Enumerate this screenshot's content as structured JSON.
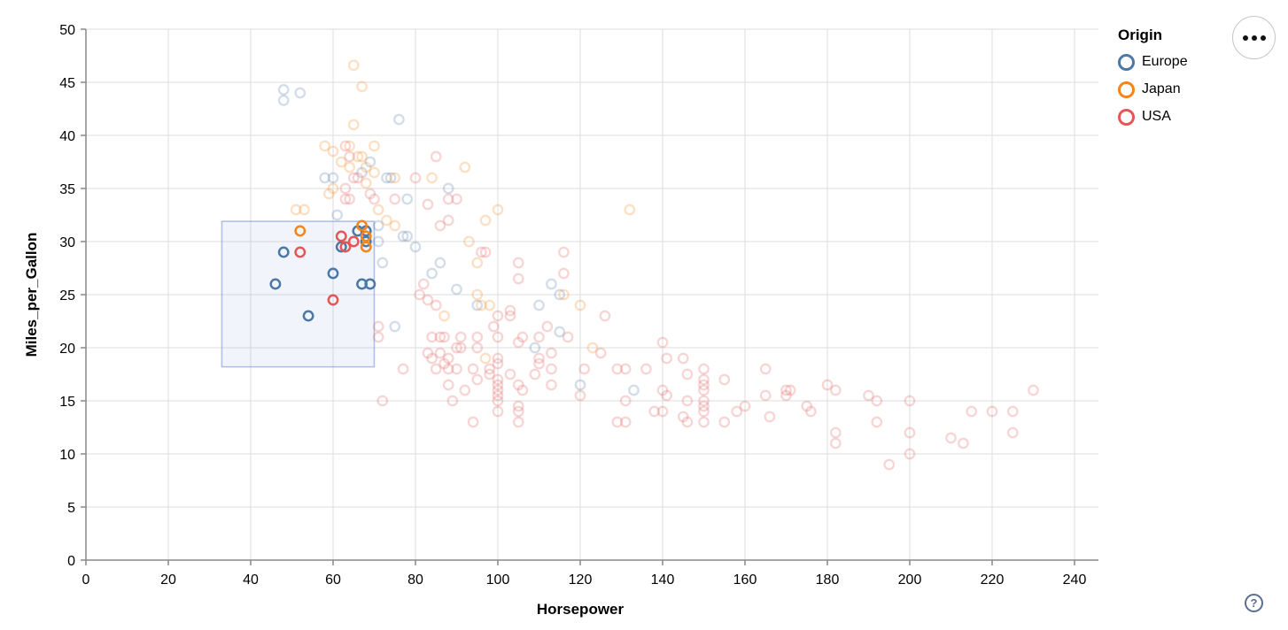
{
  "legend": {
    "title": "Origin",
    "entries": [
      {
        "label": "Europe",
        "color": "#4c78a8"
      },
      {
        "label": "Japan",
        "color": "#f58518"
      },
      {
        "label": "USA",
        "color": "#e45756"
      }
    ]
  },
  "controls": {
    "menu_tooltip": "options",
    "help_label": "?"
  },
  "style": {
    "background": "#ffffff",
    "grid_color": "#dddddd",
    "axis_domain_color": "#888888",
    "tick_color": "#888888",
    "label_color": "#000000",
    "unselected_opacity": 0.25,
    "brush_fill": "rgba(140, 170, 220, 0.12)",
    "brush_stroke": "rgba(130, 160, 215, 0.65)"
  },
  "chart_data": {
    "type": "scatter",
    "title": "",
    "xlabel": "Horsepower",
    "ylabel": "Miles_per_Gallon",
    "xlim": [
      0,
      240
    ],
    "ylim": [
      0,
      50
    ],
    "xticks": [
      0,
      20,
      40,
      60,
      80,
      100,
      120,
      140,
      160,
      180,
      200,
      220,
      240
    ],
    "yticks": [
      0,
      5,
      10,
      15,
      20,
      25,
      30,
      35,
      40,
      45,
      50
    ],
    "grid": true,
    "legend_position": "top-right",
    "brush": {
      "x": [
        33,
        70
      ],
      "y": [
        18.2,
        31.9
      ]
    },
    "series": [
      {
        "name": "Europe",
        "color": "#4c78a8",
        "selected_points": [
          [
            46,
            26
          ],
          [
            48,
            29
          ],
          [
            54,
            23
          ],
          [
            60,
            27
          ],
          [
            62,
            29.5
          ],
          [
            66,
            31
          ],
          [
            68,
            31
          ],
          [
            68,
            30
          ],
          [
            67,
            26
          ],
          [
            69,
            26
          ]
        ],
        "points": [
          [
            48,
            44.3
          ],
          [
            52,
            44
          ],
          [
            48,
            43.3
          ],
          [
            76,
            41.5
          ],
          [
            69,
            37.5
          ],
          [
            67,
            36.5
          ],
          [
            73,
            36
          ],
          [
            74,
            36
          ],
          [
            58,
            36
          ],
          [
            60,
            36
          ],
          [
            88,
            35
          ],
          [
            78,
            34
          ],
          [
            71,
            31.5
          ],
          [
            61,
            32.5
          ],
          [
            77,
            30.5
          ],
          [
            78,
            30.5
          ],
          [
            71,
            30
          ],
          [
            72,
            28
          ],
          [
            80,
            29.5
          ],
          [
            86,
            28
          ],
          [
            84,
            27
          ],
          [
            90,
            25.5
          ],
          [
            95,
            24
          ],
          [
            113,
            26
          ],
          [
            115,
            25
          ],
          [
            110,
            24
          ],
          [
            75,
            22
          ],
          [
            115,
            21.5
          ],
          [
            109,
            20
          ],
          [
            120,
            16.5
          ],
          [
            133,
            16
          ]
        ]
      },
      {
        "name": "Japan",
        "color": "#f58518",
        "selected_points": [
          [
            52,
            31
          ],
          [
            67,
            31.5
          ],
          [
            68,
            30.5
          ],
          [
            68,
            29.5
          ]
        ],
        "points": [
          [
            65,
            46.6
          ],
          [
            67,
            44.6
          ],
          [
            65,
            41
          ],
          [
            70,
            39
          ],
          [
            64,
            39
          ],
          [
            58,
            39
          ],
          [
            60,
            38.5
          ],
          [
            62,
            37.5
          ],
          [
            66,
            38
          ],
          [
            64,
            37
          ],
          [
            67,
            38
          ],
          [
            68,
            37
          ],
          [
            68,
            35.5
          ],
          [
            70,
            36.5
          ],
          [
            60,
            35
          ],
          [
            59,
            34.5
          ],
          [
            51,
            33
          ],
          [
            53,
            33
          ],
          [
            75,
            36
          ],
          [
            84,
            36
          ],
          [
            92,
            37
          ],
          [
            71,
            33
          ],
          [
            73,
            32
          ],
          [
            75,
            31.5
          ],
          [
            97,
            32
          ],
          [
            100,
            33
          ],
          [
            132,
            33
          ],
          [
            93,
            30
          ],
          [
            95,
            28
          ],
          [
            95,
            25
          ],
          [
            96,
            24
          ],
          [
            98,
            24
          ],
          [
            116,
            25
          ],
          [
            120,
            24
          ],
          [
            87,
            23
          ],
          [
            97,
            19
          ],
          [
            123,
            20
          ]
        ]
      },
      {
        "name": "USA",
        "color": "#e45756",
        "selected_points": [
          [
            52,
            29
          ],
          [
            60,
            24.5
          ],
          [
            62,
            30.5
          ],
          [
            65,
            30
          ],
          [
            63,
            29.5
          ]
        ],
        "points": [
          [
            63,
            39
          ],
          [
            64,
            38
          ],
          [
            65,
            36
          ],
          [
            66,
            36
          ],
          [
            63,
            35
          ],
          [
            63,
            34
          ],
          [
            64,
            34
          ],
          [
            69,
            34.5
          ],
          [
            70,
            34
          ],
          [
            75,
            34
          ],
          [
            80,
            36
          ],
          [
            85,
            38
          ],
          [
            83,
            33.5
          ],
          [
            88,
            34
          ],
          [
            90,
            34
          ],
          [
            86,
            31.5
          ],
          [
            88,
            32
          ],
          [
            96,
            29
          ],
          [
            97,
            29
          ],
          [
            105,
            28
          ],
          [
            105,
            26.5
          ],
          [
            116,
            29
          ],
          [
            116,
            27
          ],
          [
            112,
            22
          ],
          [
            103,
            23.5
          ],
          [
            103,
            23
          ],
          [
            100,
            23
          ],
          [
            82,
            26
          ],
          [
            81,
            25
          ],
          [
            83,
            24.5
          ],
          [
            85,
            24
          ],
          [
            84,
            21
          ],
          [
            86,
            21
          ],
          [
            87,
            21
          ],
          [
            86,
            19.5
          ],
          [
            83,
            19.5
          ],
          [
            84,
            19
          ],
          [
            88,
            19
          ],
          [
            87,
            18.5
          ],
          [
            88,
            18
          ],
          [
            85,
            18
          ],
          [
            90,
            20
          ],
          [
            90,
            18
          ],
          [
            91,
            21
          ],
          [
            91,
            20
          ],
          [
            95,
            21
          ],
          [
            95,
            20
          ],
          [
            94,
            18
          ],
          [
            95,
            17
          ],
          [
            92,
            16
          ],
          [
            88,
            16.5
          ],
          [
            89,
            15
          ],
          [
            94,
            13
          ],
          [
            98,
            18
          ],
          [
            98,
            17.5
          ],
          [
            99,
            22
          ],
          [
            100,
            21
          ],
          [
            100,
            19
          ],
          [
            100,
            18.5
          ],
          [
            100,
            17
          ],
          [
            100,
            16.5
          ],
          [
            100,
            16
          ],
          [
            100,
            15.5
          ],
          [
            100,
            15
          ],
          [
            100,
            14
          ],
          [
            103,
            17.5
          ],
          [
            105,
            20.5
          ],
          [
            106,
            21
          ],
          [
            105,
            16.5
          ],
          [
            106,
            16
          ],
          [
            105,
            14.5
          ],
          [
            105,
            14
          ],
          [
            105,
            13
          ],
          [
            109,
            17.5
          ],
          [
            110,
            21
          ],
          [
            110,
            19
          ],
          [
            110,
            18.5
          ],
          [
            113,
            19.5
          ],
          [
            113,
            18
          ],
          [
            113,
            16.5
          ],
          [
            117,
            21
          ],
          [
            72,
            15
          ],
          [
            77,
            18
          ],
          [
            71,
            22
          ],
          [
            71,
            21
          ],
          [
            121,
            18
          ],
          [
            120,
            15.5
          ],
          [
            125,
            19.5
          ],
          [
            126,
            23
          ],
          [
            129,
            18
          ],
          [
            131,
            18
          ],
          [
            129,
            13
          ],
          [
            131,
            13
          ],
          [
            131,
            15
          ],
          [
            136,
            18
          ],
          [
            138,
            14
          ],
          [
            140,
            14
          ],
          [
            140,
            20.5
          ],
          [
            141,
            19
          ],
          [
            140,
            16
          ],
          [
            141,
            15.5
          ],
          [
            145,
            19
          ],
          [
            146,
            17.5
          ],
          [
            146,
            15
          ],
          [
            145,
            13.5
          ],
          [
            146,
            13
          ],
          [
            150,
            18
          ],
          [
            150,
            17
          ],
          [
            150,
            16.5
          ],
          [
            150,
            16
          ],
          [
            150,
            15
          ],
          [
            150,
            14.5
          ],
          [
            150,
            14
          ],
          [
            150,
            13
          ],
          [
            155,
            17
          ],
          [
            155,
            13
          ],
          [
            158,
            14
          ],
          [
            160,
            14.5
          ],
          [
            165,
            18
          ],
          [
            165,
            15.5
          ],
          [
            166,
            13.5
          ],
          [
            170,
            16
          ],
          [
            171,
            16
          ],
          [
            170,
            15.5
          ],
          [
            175,
            14.5
          ],
          [
            176,
            14
          ],
          [
            180,
            16.5
          ],
          [
            182,
            16
          ],
          [
            182,
            12
          ],
          [
            182,
            11
          ],
          [
            190,
            15.5
          ],
          [
            192,
            15
          ],
          [
            192,
            13
          ],
          [
            200,
            15
          ],
          [
            200,
            12
          ],
          [
            200,
            10
          ],
          [
            195,
            9
          ],
          [
            210,
            11.5
          ],
          [
            213,
            11
          ],
          [
            215,
            14
          ],
          [
            220,
            14
          ],
          [
            225,
            14
          ],
          [
            225,
            12
          ],
          [
            230,
            16
          ]
        ]
      }
    ]
  }
}
